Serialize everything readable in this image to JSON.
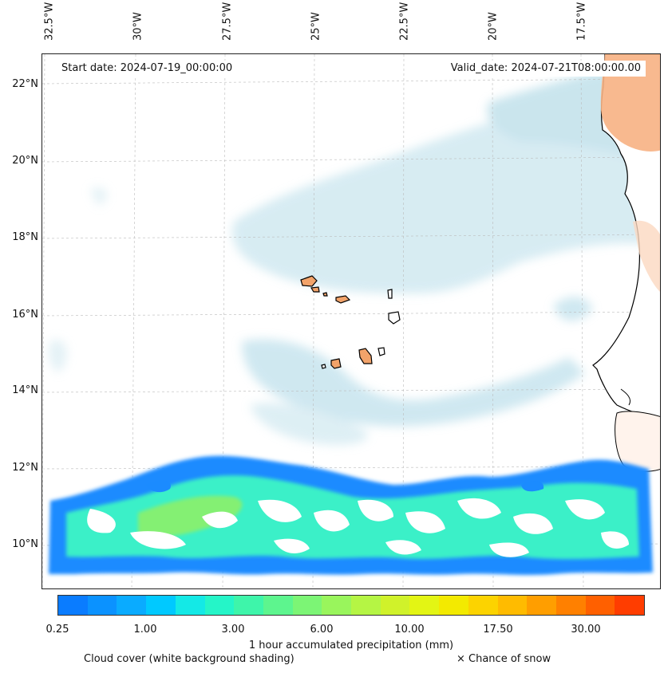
{
  "lon_labels": [
    "32.5°W",
    "30°W",
    "27.5°W",
    "25°W",
    "22.5°W",
    "20°W",
    "17.5°W"
  ],
  "lat_labels": [
    "22°N",
    "20°N",
    "18°N",
    "16°N",
    "14°N",
    "12°N",
    "10°N"
  ],
  "start_date": "Start date: 2024-07-19_00:00:00",
  "valid_date": "Valid_date: 2024-07-21T08:00:00.00",
  "colorbar": {
    "colors": [
      "#0a7cff",
      "#0b92ff",
      "#0aabff",
      "#00c9ff",
      "#14e9e6",
      "#25f5c8",
      "#3ef5aa",
      "#5df58e",
      "#7cf575",
      "#99f55c",
      "#b5f544",
      "#d0f22a",
      "#e3f514",
      "#f3ea00",
      "#fcd300",
      "#ffbb00",
      "#ff9e00",
      "#ff8000",
      "#ff6000",
      "#ff3d00"
    ],
    "tick_labels": [
      "0.25",
      "1.00",
      "3.00",
      "6.00",
      "10.00",
      "17.50",
      "30.00"
    ],
    "title": "1 hour accumulated precipitation (mm)"
  },
  "legend": {
    "cloud_cover": "Cloud cover (white background shading)",
    "snow": "× Chance of snow"
  },
  "colors": {
    "land_dry": "#f2a36a",
    "cloud": "#a9d6e5",
    "precip_low": "#1b8bff",
    "precip_mid": "#3bf0c8",
    "precip_high": "#8cf06a"
  }
}
